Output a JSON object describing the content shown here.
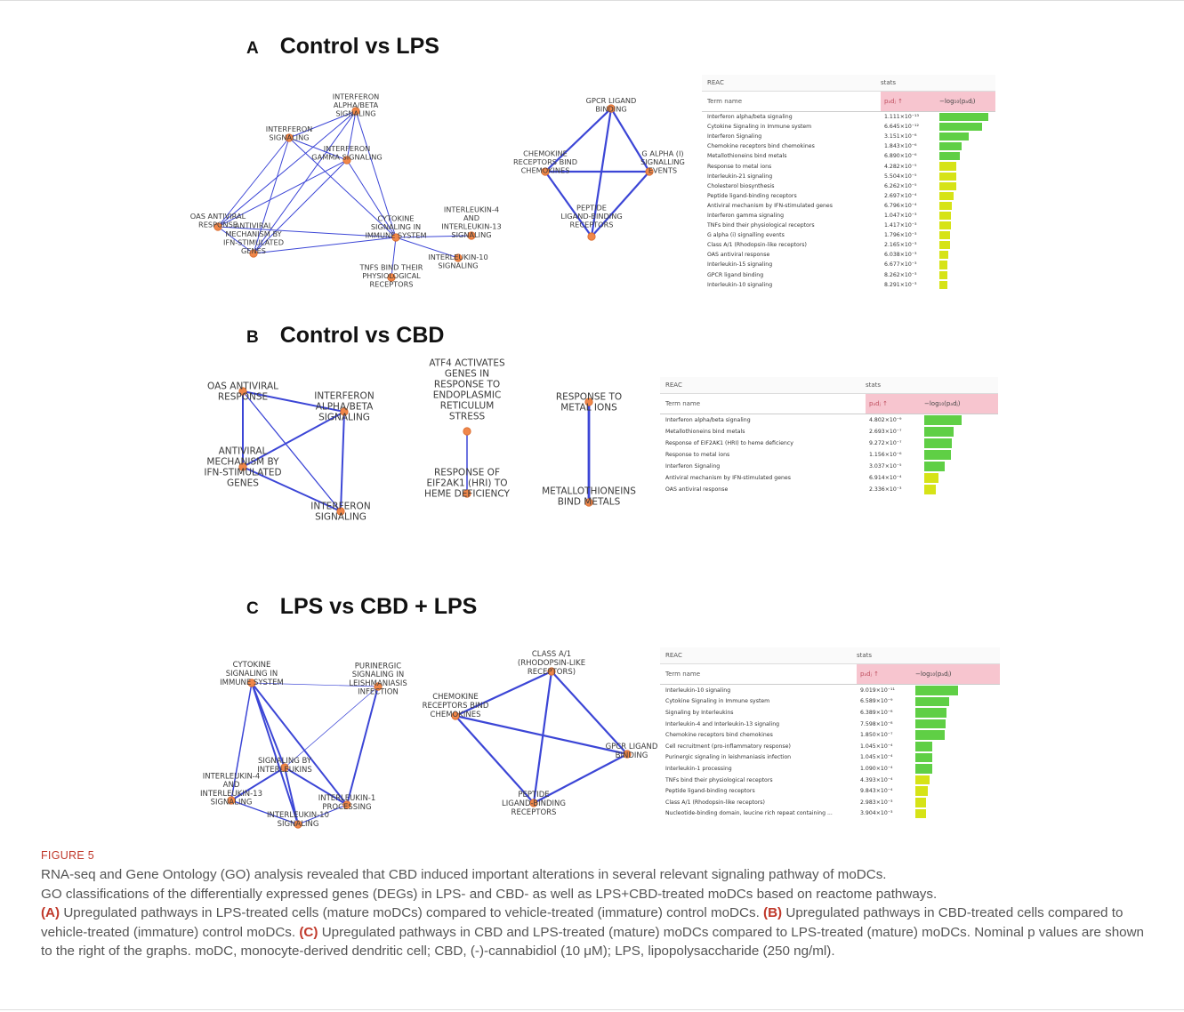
{
  "figure_label": "FIGURE 5",
  "panels": [
    {
      "letter": "A",
      "title": "Control vs LPS",
      "networks": [
        {
          "nodes": [
            {
              "label": [
                "INTERFERON",
                "ALPHA/BETA",
                "SIGNALING"
              ]
            },
            {
              "label": [
                "INTERFERON",
                "SIGNALING"
              ]
            },
            {
              "label": [
                "INTERFERON",
                "GAMMA SIGNALING"
              ]
            },
            {
              "label": [
                "OAS ANTIVIRAL",
                "RESPONSE"
              ]
            },
            {
              "label": [
                "ANTIVIRAL",
                "MECHANISM BY",
                "IFN-STIMULATED",
                "GENES"
              ]
            },
            {
              "label": [
                "CYTOKINE",
                "SIGNALING IN",
                "IMMUNE SYSTEM"
              ]
            },
            {
              "label": [
                "INTERLEUKIN-4",
                "AND",
                "INTERLEUKIN-13",
                "SIGNALING"
              ]
            },
            {
              "label": [
                "INTERLEUKIN-10",
                "SIGNALING"
              ]
            },
            {
              "label": [
                "TNFS BIND THEIR",
                "PHYSIOLOGICAL",
                "RECEPTORS"
              ]
            }
          ]
        },
        {
          "nodes": [
            {
              "label": [
                "GPCR LIGAND",
                "BINDING"
              ]
            },
            {
              "label": [
                "CHEMOKINE",
                "RECEPTORS BIND",
                "CHEMOKINES"
              ]
            },
            {
              "label": [
                "G ALPHA (I)",
                "SIGNALLING",
                "EVENTS"
              ]
            },
            {
              "label": [
                "PEPTIDE",
                "LIGAND-BINDING",
                "RECEPTORS"
              ]
            }
          ]
        }
      ],
      "table": {
        "source": "REAC",
        "stats": "stats",
        "term_header": "Term name",
        "padj_header": "pₐdⱼ ↑",
        "log_header": "−log₁₀(pₐdⱼ)",
        "rows": [
          {
            "term": "Interferon alpha/beta signaling",
            "padj": "1.111×10⁻¹³",
            "fill": 1.0
          },
          {
            "term": "Cytokine Signaling in Immune system",
            "padj": "6.645×10⁻¹²",
            "fill": 0.87
          },
          {
            "term": "Interferon Signaling",
            "padj": "3.151×10⁻⁸",
            "fill": 0.6
          },
          {
            "term": "Chemokine receptors bind chemokines",
            "padj": "1.843×10⁻⁶",
            "fill": 0.45
          },
          {
            "term": "Metallothioneins bind metals",
            "padj": "6.890×10⁻⁶",
            "fill": 0.41
          },
          {
            "term": "Response to metal ions",
            "padj": "4.282×10⁻⁵",
            "fill": 0.35
          },
          {
            "term": "Interleukin-21 signaling",
            "padj": "5.504×10⁻⁵",
            "fill": 0.34
          },
          {
            "term": "Cholesterol biosynthesis",
            "padj": "6.262×10⁻⁵",
            "fill": 0.34
          },
          {
            "term": "Peptide ligand-binding receptors",
            "padj": "2.697×10⁻⁴",
            "fill": 0.29
          },
          {
            "term": "Antiviral mechanism by IFN-stimulated genes",
            "padj": "6.796×10⁻⁴",
            "fill": 0.26
          },
          {
            "term": "Interferon gamma signaling",
            "padj": "1.047×10⁻³",
            "fill": 0.24
          },
          {
            "term": "TNFs bind their physiological receptors",
            "padj": "1.417×10⁻³",
            "fill": 0.23
          },
          {
            "term": "G alpha (i) signalling events",
            "padj": "1.796×10⁻³",
            "fill": 0.22
          },
          {
            "term": "Class A/1 (Rhodopsin-like receptors)",
            "padj": "2.165×10⁻³",
            "fill": 0.21
          },
          {
            "term": "OAS antiviral response",
            "padj": "6.038×10⁻³",
            "fill": 0.18
          },
          {
            "term": "Interleukin-15 signaling",
            "padj": "6.677×10⁻³",
            "fill": 0.17
          },
          {
            "term": "GPCR ligand binding",
            "padj": "8.262×10⁻³",
            "fill": 0.16
          },
          {
            "term": "Interleukin-10 signaling",
            "padj": "8.291×10⁻³",
            "fill": 0.16
          }
        ]
      }
    },
    {
      "letter": "B",
      "title": "Control vs CBD",
      "networks": [
        {
          "nodes": [
            {
              "label": [
                "OAS ANTIVIRAL",
                "RESPONSE"
              ]
            },
            {
              "label": [
                "INTERFERON",
                "ALPHA/BETA",
                "SIGNALING"
              ]
            },
            {
              "label": [
                "ANTIVIRAL",
                "MECHANISM BY",
                "IFN-STIMULATED",
                "GENES"
              ]
            },
            {
              "label": [
                "INTERFERON",
                "SIGNALING"
              ]
            }
          ]
        },
        {
          "nodes": [
            {
              "label": [
                "ATF4 ACTIVATES",
                "GENES IN",
                "RESPONSE TO",
                "ENDOPLASMIC",
                "RETICULUM",
                "STRESS"
              ]
            },
            {
              "label": [
                "RESPONSE OF",
                "EIF2AK1 (HRI) TO",
                "HEME DEFICIENCY"
              ]
            }
          ]
        },
        {
          "nodes": [
            {
              "label": [
                "RESPONSE TO",
                "METAL IONS"
              ]
            },
            {
              "label": [
                "METALLOTHIONEINS",
                "BIND METALS"
              ]
            }
          ]
        }
      ],
      "table": {
        "source": "REAC",
        "stats": "stats",
        "term_header": "Term name",
        "padj_header": "pₐdⱼ ↑",
        "log_header": "−log₁₀(pₐdⱼ)",
        "rows": [
          {
            "term": "Interferon alpha/beta signaling",
            "padj": "4.802×10⁻⁹",
            "fill": 1.0
          },
          {
            "term": "Metallothioneins bind metals",
            "padj": "2.693×10⁻⁷",
            "fill": 0.78
          },
          {
            "term": "Response of EIF2AK1 (HRI) to heme deficiency",
            "padj": "9.272×10⁻⁷",
            "fill": 0.73
          },
          {
            "term": "Response to metal ions",
            "padj": "1.156×10⁻⁶",
            "fill": 0.72
          },
          {
            "term": "Interferon Signaling",
            "padj": "3.037×10⁻⁵",
            "fill": 0.55
          },
          {
            "term": "Antiviral mechanism by IFN-stimulated genes",
            "padj": "6.914×10⁻⁴",
            "fill": 0.39
          },
          {
            "term": "OAS antiviral response",
            "padj": "2.336×10⁻³",
            "fill": 0.32
          }
        ]
      }
    },
    {
      "letter": "C",
      "title": "LPS vs CBD + LPS",
      "networks": [
        {
          "nodes": [
            {
              "label": [
                "CYTOKINE",
                "SIGNALING IN",
                "IMMUNE SYSTEM"
              ]
            },
            {
              "label": [
                "PURINERGIC",
                "SIGNALING IN",
                "LEISHMANIASIS",
                "INFECTION"
              ]
            },
            {
              "label": [
                "SIGNALING BY",
                "INTERLEUKINS"
              ]
            },
            {
              "label": [
                "INTERLEUKIN-4",
                "AND",
                "INTERLEUKIN-13",
                "SIGNALING"
              ]
            },
            {
              "label": [
                "INTERLEUKIN-1",
                "PROCESSING"
              ]
            },
            {
              "label": [
                "INTERLEUKIN-10",
                "SIGNALING"
              ]
            }
          ]
        },
        {
          "nodes": [
            {
              "label": [
                "CLASS A/1",
                "(RHODOPSIN-LIKE",
                "RECEPTORS)"
              ]
            },
            {
              "label": [
                "CHEMOKINE",
                "RECEPTORS BIND",
                "CHEMOKINES"
              ]
            },
            {
              "label": [
                "GPCR LIGAND",
                "BINDING"
              ]
            },
            {
              "label": [
                "PEPTIDE",
                "LIGAND-BINDING",
                "RECEPTORS"
              ]
            }
          ]
        }
      ],
      "table": {
        "source": "REAC",
        "stats": "stats",
        "term_header": "Term name",
        "padj_header": "pₐdⱼ ↑",
        "log_header": "−log₁₀(pₐdⱼ)",
        "rows": [
          {
            "term": "Interleukin-10 signaling",
            "padj": "9.019×10⁻¹¹",
            "fill": 1.0
          },
          {
            "term": "Cytokine Signaling in Immune system",
            "padj": "6.589×10⁻⁹",
            "fill": 0.8
          },
          {
            "term": "Signaling by Interleukins",
            "padj": "6.389×10⁻⁸",
            "fill": 0.72
          },
          {
            "term": "Interleukin-4 and Interleukin-13 signaling",
            "padj": "7.598×10⁻⁸",
            "fill": 0.71
          },
          {
            "term": "Chemokine receptors bind chemokines",
            "padj": "1.850×10⁻⁷",
            "fill": 0.68
          },
          {
            "term": "Cell recruitment (pro-inflammatory response)",
            "padj": "1.045×10⁻⁴",
            "fill": 0.4
          },
          {
            "term": "Purinergic signaling in leishmaniasis infection",
            "padj": "1.045×10⁻⁴",
            "fill": 0.4
          },
          {
            "term": "Interleukin-1 processing",
            "padj": "1.090×10⁻⁴",
            "fill": 0.4
          },
          {
            "term": "TNFs bind their physiological receptors",
            "padj": "4.393×10⁻⁴",
            "fill": 0.34
          },
          {
            "term": "Peptide ligand-binding receptors",
            "padj": "9.843×10⁻⁴",
            "fill": 0.3
          },
          {
            "term": "Class A/1 (Rhodopsin-like receptors)",
            "padj": "2.983×10⁻³",
            "fill": 0.26
          },
          {
            "term": "Nucleotide-binding domain, leucine rich repeat containing ...",
            "padj": "3.904×10⁻³",
            "fill": 0.24
          }
        ]
      }
    }
  ],
  "caption": {
    "sentence1": "RNA-seq and Gene Ontology (GO) analysis revealed that CBD induced important alterations in several relevant signaling pathway of moDCs.",
    "sentence2": "GO classifications of the differentially expressed genes (DEGs) in LPS- and CBD- as well as LPS+CBD-treated moDCs based on reactome pathways.",
    "a_label": "(A)",
    "a_text": "Upregulated pathways in LPS-treated cells (mature moDCs) compared to vehicle-treated (immature) control moDCs.",
    "b_label": "(B)",
    "b_text": "Upregulated pathways in CBD-treated cells compared to vehicle-treated (immature) control moDCs.",
    "c_label": "(C)",
    "c_text": "Upregulated pathways in CBD and LPS-treated (mature) moDCs compared to LPS-treated (mature) moDCs. Nominal p values are shown to the right of the graphs. moDC, monocyte-derived dendritic cell; CBD, (-)-cannabidiol (10 μM); LPS, lipopolysaccharide (250 ng/ml)."
  },
  "colors": {
    "node": "#f0874a",
    "edge": "#3c46d6",
    "bar_green": "#5fcf45",
    "bar_yellow": "#d6e317",
    "header_pink": "#f7c5cf",
    "caption_accent": "#c0392b"
  }
}
